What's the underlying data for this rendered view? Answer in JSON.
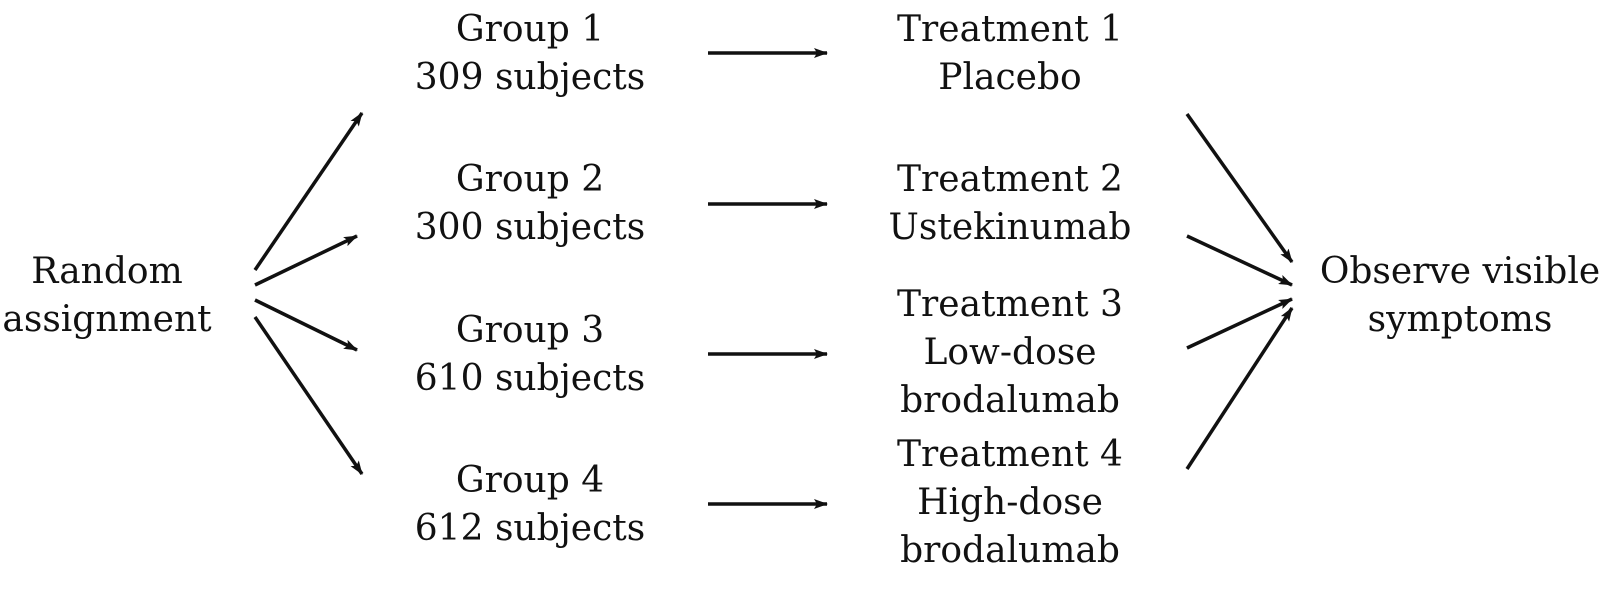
{
  "source": {
    "line1": "Random",
    "line2": "assignment"
  },
  "groups": [
    {
      "name": "Group 1",
      "subjects": "309 subjects"
    },
    {
      "name": "Group 2",
      "subjects": "300 subjects"
    },
    {
      "name": "Group 3",
      "subjects": "610 subjects"
    },
    {
      "name": "Group 4",
      "subjects": "612 subjects"
    }
  ],
  "treatments": [
    {
      "name": "Treatment 1",
      "line2": "Placebo",
      "line3": ""
    },
    {
      "name": "Treatment 2",
      "line2": "Ustekinumab",
      "line3": ""
    },
    {
      "name": "Treatment 3",
      "line2": "Low-dose",
      "line3": "brodalumab"
    },
    {
      "name": "Treatment 4",
      "line2": "High-dose",
      "line3": "brodalumab"
    }
  ],
  "outcome": {
    "line1": "Observe visible",
    "line2": "symptoms"
  },
  "colors": {
    "ink": "#111111",
    "background": "#ffffff"
  }
}
